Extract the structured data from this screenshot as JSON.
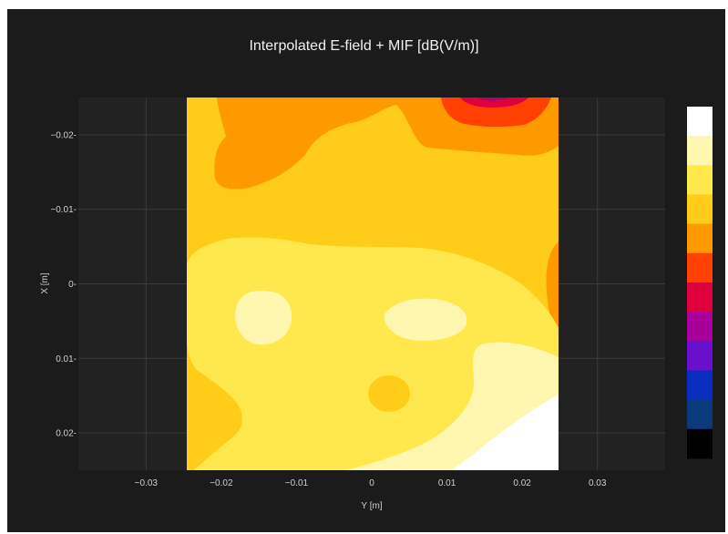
{
  "chart_data": {
    "type": "heatmap",
    "subtype": "filled-contour",
    "title": "Interpolated E-field + MIF [dB(V/m)]",
    "xlabel": "Y [m]",
    "ylabel": "X [m]",
    "xlim": [
      -0.039,
      0.039
    ],
    "ylim": [
      0.025,
      -0.025
    ],
    "y_axis_reversed": true,
    "x_ticks": [
      -0.03,
      -0.02,
      -0.01,
      0,
      0.01,
      0.02,
      0.03
    ],
    "x_tick_labels": [
      "−0.03",
      "−0.02",
      "−0.01",
      "0",
      "0.01",
      "0.02",
      "0.03"
    ],
    "y_ticks": [
      -0.02,
      -0.01,
      0,
      0.01,
      0.02
    ],
    "y_tick_labels": [
      "−0.02-",
      "−0.01-",
      "0-",
      "0.01-",
      "0.02-"
    ],
    "data_extent": {
      "y_m": [
        -0.025,
        0.025
      ],
      "x_m": [
        -0.025,
        0.025
      ]
    },
    "grid": true,
    "colorbar": {
      "position": "right",
      "tick_labels": [],
      "levels_top_to_bottom": [
        "#ffffff",
        "#fff7b0",
        "#ffe84d",
        "#ffcc1a",
        "#ff9900",
        "#ff4000",
        "#e0003c",
        "#a8009a",
        "#6a10cc",
        "#0a2cbf",
        "#0b3a7a",
        "#000000"
      ]
    },
    "colors": {
      "background": "#1b1b1b",
      "plot_background": "#222222",
      "grid": "#3a3a3a",
      "text": "#d0d0d0"
    }
  }
}
